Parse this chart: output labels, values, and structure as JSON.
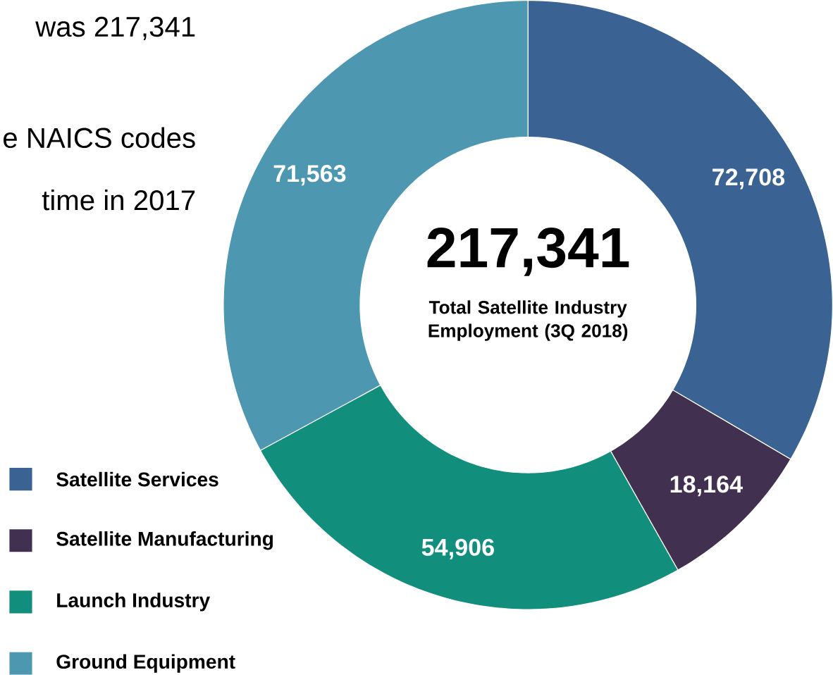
{
  "chart_data": {
    "type": "donut",
    "title": "217,341",
    "subtitle": "Total Satellite Industry Employment (3Q 2018)",
    "categories": [
      "Satellite Services",
      "Satellite Manufacturing",
      "Launch Industry",
      "Ground Equipment"
    ],
    "values": [
      72708,
      18164,
      54906,
      71563
    ],
    "colors": [
      "#3a6393",
      "#41304f",
      "#128e7c",
      "#4d98b0"
    ],
    "value_labels": [
      "72,708",
      "18,164",
      "54,906",
      "71,563"
    ],
    "legend": "bottom left",
    "annotations": [
      "was 217,341",
      "e NAICS codes",
      "time in 2017"
    ]
  }
}
